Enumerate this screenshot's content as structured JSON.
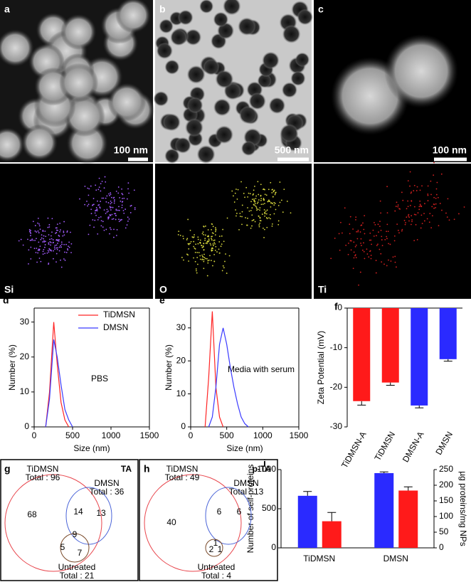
{
  "images": [
    {
      "label": "a",
      "scale": "100 nm"
    },
    {
      "label": "b",
      "scale": "500 nm"
    },
    {
      "label": "c",
      "scale": "100 nm"
    },
    {
      "label": "Si"
    },
    {
      "label": "O"
    },
    {
      "label": "Ti"
    }
  ],
  "chart_data": [
    {
      "type": "line",
      "panel": "d",
      "xlabel": "Size (nm)",
      "ylabel": "Number (%)",
      "annotation": "PBS",
      "xlim": [
        0,
        1500
      ],
      "xticks": [
        0,
        500,
        1000,
        1500
      ],
      "ylim": [
        0,
        34
      ],
      "yticks": [
        0,
        10,
        20,
        30
      ],
      "legend": "upper right",
      "series": [
        {
          "name": "TiDMSN",
          "color": "#ff2424",
          "x": [
            150,
            200,
            255,
            300,
            350,
            400,
            450
          ],
          "values": [
            0,
            10,
            30,
            18,
            7,
            2,
            0
          ]
        },
        {
          "name": "DMSN",
          "color": "#3a3aff",
          "x": [
            150,
            200,
            255,
            300,
            350,
            400,
            450,
            500
          ],
          "values": [
            0,
            8,
            25,
            20,
            12,
            5,
            2,
            0
          ]
        }
      ]
    },
    {
      "type": "line",
      "panel": "e",
      "xlabel": "Size (nm)",
      "ylabel": "Number (%)",
      "annotation": "Media with serum",
      "xlim": [
        0,
        1500
      ],
      "xticks": [
        0,
        500,
        1000,
        1500
      ],
      "ylim": [
        0,
        36
      ],
      "yticks": [
        0,
        10,
        20,
        30
      ],
      "series": [
        {
          "color": "#ff2424",
          "x": [
            200,
            250,
            300,
            350,
            400,
            450
          ],
          "values": [
            0,
            15,
            35,
            12,
            3,
            0
          ]
        },
        {
          "color": "#3a3aff",
          "x": [
            250,
            300,
            350,
            400,
            450,
            500,
            550,
            600,
            650,
            700,
            750,
            800
          ],
          "values": [
            0,
            3,
            12,
            25,
            30,
            25,
            18,
            12,
            7,
            3,
            1,
            0
          ]
        }
      ]
    },
    {
      "type": "bar",
      "panel": "f",
      "ylabel": "Zeta Potential (mV)",
      "categories": [
        "TiDMSN-A",
        "TiDMSN",
        "DMSN-A",
        "DMSN"
      ],
      "values": [
        -23.5,
        -18.8,
        -24.6,
        -12.9
      ],
      "errors": [
        1,
        0.7,
        0.6,
        0.5
      ],
      "colors": [
        "#ff1a1a",
        "#ff1a1a",
        "#2a2aff",
        "#2a2aff"
      ],
      "ylim": [
        -30,
        0
      ],
      "yticks": [
        -30,
        -20,
        -10,
        0
      ]
    },
    {
      "type": "groupedbar",
      "panel": "i",
      "categories": [
        "TiDMSN",
        "DMSN"
      ],
      "ylim": [
        0,
        1000
      ],
      "yticks": [
        0,
        500,
        1000
      ],
      "y2lim": [
        0,
        250
      ],
      "y2ticks": [
        0,
        50,
        100,
        150,
        200,
        250
      ],
      "series": [
        {
          "name": "Number of self-proteins",
          "color": "#2a2aff",
          "values": [
            665,
            955
          ],
          "errors": [
            55,
            15
          ]
        },
        {
          "name": "µg proteins/mg NPs",
          "color": "#ff1a1a",
          "axis": "y2",
          "values": [
            85,
            183
          ],
          "errors": [
            28,
            12
          ]
        }
      ]
    }
  ],
  "venn": [
    {
      "panel": "g",
      "title": "TA",
      "sets": [
        {
          "name": "TiDMSN",
          "total": "Total : 96"
        },
        {
          "name": "DMSN",
          "total": "Total : 36"
        },
        {
          "name": "Untreated",
          "total": "Total : 21"
        }
      ],
      "regions": [
        68,
        14,
        13,
        9,
        5,
        7
      ]
    },
    {
      "panel": "h",
      "title": "p-TA",
      "sets": [
        {
          "name": "TiDMSN",
          "total": "Total : 49"
        },
        {
          "name": "DMSN",
          "total": "Total : 13"
        },
        {
          "name": "Untreated",
          "total": "Total : 4"
        }
      ],
      "regions": [
        40,
        6,
        6,
        1,
        2,
        1
      ]
    }
  ]
}
